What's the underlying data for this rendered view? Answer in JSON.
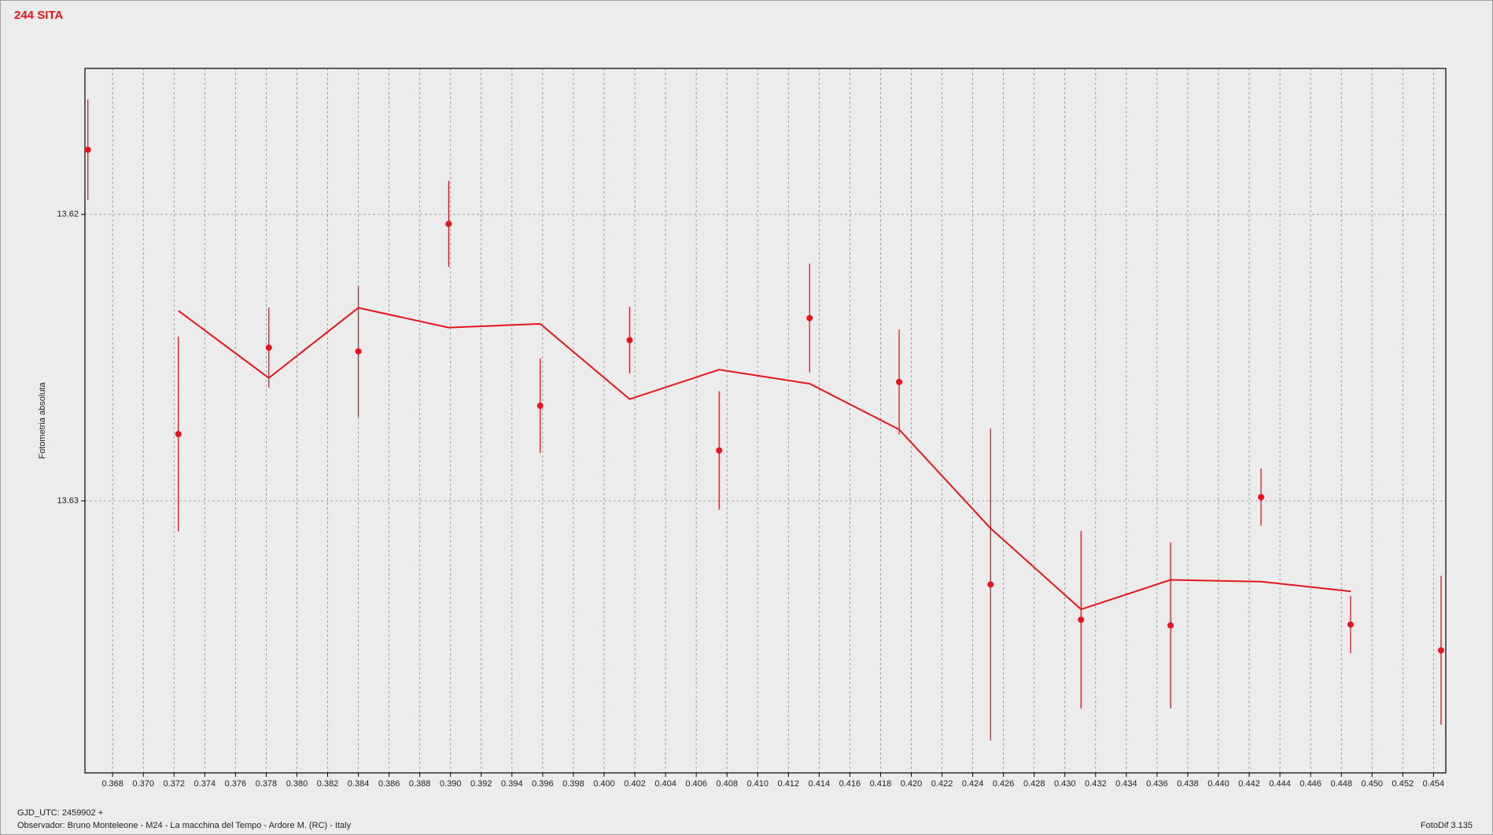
{
  "chart_data": {
    "type": "scatter",
    "title": "244 SITA",
    "ylabel": "Fotometria absoluta",
    "xlim": [
      0.3662,
      0.4548
    ],
    "ylim": [
      13.6395,
      13.6149
    ],
    "grid": true,
    "xticks": [
      0.368,
      {
        "value": 0.37,
        "label": "0.370"
      },
      0.372,
      0.374,
      0.376,
      0.378,
      {
        "value": 0.38,
        "label": "0.380"
      },
      0.382,
      0.384,
      0.386,
      0.388,
      {
        "value": 0.39,
        "label": "0.390"
      },
      0.392,
      0.394,
      0.396,
      0.398,
      {
        "value": 0.4,
        "label": "0.400"
      },
      0.402,
      0.404,
      0.406,
      0.408,
      {
        "value": 0.41,
        "label": "0.410"
      },
      0.412,
      0.414,
      0.416,
      0.418,
      {
        "value": 0.42,
        "label": "0.420"
      },
      0.422,
      0.424,
      0.426,
      0.428,
      {
        "value": 0.43,
        "label": "0.430"
      },
      0.432,
      0.434,
      0.436,
      0.438,
      {
        "value": 0.44,
        "label": "0.440"
      },
      0.442,
      0.444,
      0.446,
      0.448,
      {
        "value": 0.45,
        "label": "0.450"
      },
      0.452,
      0.454
    ],
    "yticks": [
      13.62,
      13.63
    ],
    "points": {
      "color": "#e8141c",
      "x": [
        0.36639,
        0.37228,
        0.37817,
        0.384,
        0.38988,
        0.39584,
        0.40166,
        0.40749,
        0.41338,
        0.41921,
        0.42516,
        0.43105,
        0.43688,
        0.44277,
        0.4486,
        0.45449
      ],
      "values": [
        13.61774,
        13.62767,
        13.62465,
        13.62478,
        13.62033,
        13.62668,
        13.62439,
        13.62824,
        13.62362,
        13.62585,
        13.63292,
        13.63415,
        13.63435,
        13.62987,
        13.63432,
        13.63522
      ],
      "errors": [
        0.00176,
        0.0034,
        0.0014,
        0.0023,
        0.0015,
        0.00165,
        0.00116,
        0.00207,
        0.0019,
        0.00183,
        0.00545,
        0.0031,
        0.0029,
        0.001,
        0.001,
        0.0026
      ]
    },
    "fit": {
      "color": "#e8141c",
      "x": [
        0.37228,
        0.37817,
        0.384,
        0.38988,
        0.39584,
        0.40166,
        0.40749,
        0.41338,
        0.41921,
        0.42516,
        0.43105,
        0.43688,
        0.44277,
        0.4486
      ],
      "values": [
        13.62336,
        13.62571,
        13.62326,
        13.62395,
        13.62382,
        13.62645,
        13.62542,
        13.62591,
        13.62751,
        13.63096,
        13.63379,
        13.63276,
        13.63282,
        13.63316
      ]
    }
  },
  "footer": {
    "gjd": "GJD_UTC: 2459902 +",
    "observer": "Observador: Bruno Monteleone - M24 - La macchina del Tempo - Ardore M. (RC) - Italy",
    "software": "FotoDif 3.135"
  }
}
